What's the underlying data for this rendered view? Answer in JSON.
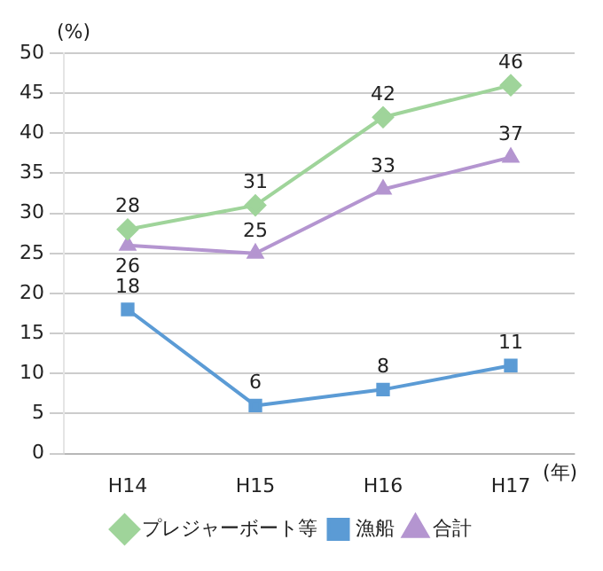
{
  "chart_data": {
    "type": "line",
    "ylabel": "(%)",
    "xlabel": "(年)",
    "categories": [
      "H14",
      "H15",
      "H16",
      "H17"
    ],
    "series": [
      {
        "name": "プレジャーボート等",
        "color": "#9fd49a",
        "marker": "diamond",
        "values": [
          28,
          31,
          42,
          46
        ]
      },
      {
        "name": "漁船",
        "color": "#5b9bd5",
        "marker": "square",
        "values": [
          18,
          6,
          8,
          11
        ]
      },
      {
        "name": "合計",
        "color": "#b495d0",
        "marker": "triangle",
        "values": [
          26,
          25,
          33,
          37
        ]
      }
    ],
    "ylim": [
      0,
      50
    ],
    "yticks": [
      0,
      5,
      10,
      15,
      20,
      25,
      30,
      35,
      40,
      45,
      50
    ],
    "grid": "y",
    "legend": "bottom",
    "data_labels": true
  }
}
